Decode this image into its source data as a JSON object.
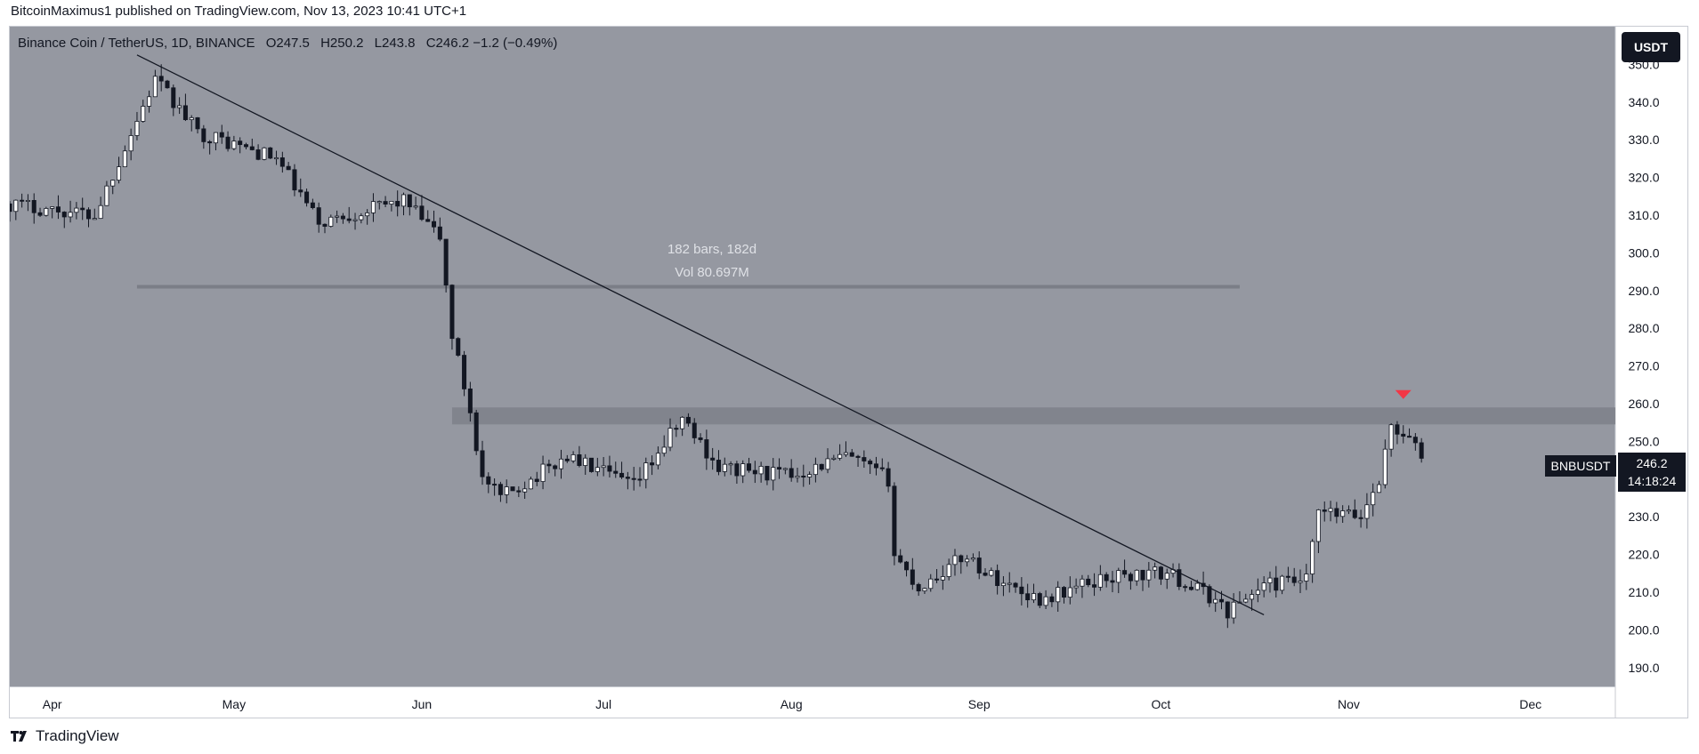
{
  "publisher_line": "BitcoinMaximus1 published on TradingView.com, Nov 13, 2023 10:41 UTC+1",
  "header": {
    "symbol": "Binance Coin / TetherUS, 1D, BINANCE",
    "o_label": "O",
    "o_value": "247.5",
    "h_label": "H",
    "h_value": "250.2",
    "l_label": "L",
    "l_value": "243.8",
    "c_label": "C",
    "c_value": "246.2 −1.2 (−0.49%)"
  },
  "currency_button": "USDT",
  "ticker_tag": "BNBUSDT",
  "last_price": "246.2",
  "countdown": "14:18:24",
  "measure": {
    "bars": "182 bars, 182d",
    "volume": "Vol 80.697M"
  },
  "footer_brand": "TradingView",
  "colors": {
    "plot_bg": "#9598a1",
    "candle_up": "#ffffff",
    "candle_down": "#131722",
    "resistance_zone": "#7e8089",
    "marker": "#f23645"
  },
  "chart_data": {
    "type": "candlestick",
    "symbol": "BNBUSDT",
    "timeframe": "1D",
    "y_axis": {
      "min": 185,
      "max": 360,
      "ticks": [
        190.0,
        200.0,
        210.0,
        220.0,
        230.0,
        240.0,
        250.0,
        260.0,
        270.0,
        280.0,
        290.0,
        300.0,
        310.0,
        320.0,
        330.0,
        340.0,
        350.0
      ]
    },
    "x_axis": {
      "start": "2023-03-25",
      "end": "2023-12-15",
      "ticks": [
        {
          "label": "Apr",
          "date": "2023-04-01"
        },
        {
          "label": "May",
          "date": "2023-05-01"
        },
        {
          "label": "Jun",
          "date": "2023-06-01"
        },
        {
          "label": "Jul",
          "date": "2023-07-01"
        },
        {
          "label": "Aug",
          "date": "2023-08-01"
        },
        {
          "label": "Sep",
          "date": "2023-09-01"
        },
        {
          "label": "Oct",
          "date": "2023-10-01"
        },
        {
          "label": "Nov",
          "date": "2023-11-01"
        },
        {
          "label": "Dec",
          "date": "2023-12-01"
        }
      ]
    },
    "grid": false,
    "trendline": {
      "from": {
        "date": "2023-04-15",
        "price": 352.5
      },
      "to": {
        "date": "2023-10-18",
        "price": 204.0
      }
    },
    "measure_line": {
      "from": "2023-04-15",
      "to": "2023-10-14",
      "price": 291.0
    },
    "resistance_zone": {
      "from": "2023-06-06",
      "to": "2023-12-15",
      "low": 254.5,
      "high": 259.0
    },
    "marker": {
      "type": "down-arrow",
      "date": "2023-11-10",
      "price": 261.0
    },
    "key_points": [
      {
        "date": "2023-03-25",
        "price": 313
      },
      {
        "date": "2023-04-08",
        "price": 310
      },
      {
        "date": "2023-04-18",
        "price": 346
      },
      {
        "date": "2023-04-25",
        "price": 332
      },
      {
        "date": "2023-05-08",
        "price": 325
      },
      {
        "date": "2023-05-15",
        "price": 308
      },
      {
        "date": "2023-05-29",
        "price": 314
      },
      {
        "date": "2023-06-04",
        "price": 304
      },
      {
        "date": "2023-06-06",
        "price": 278
      },
      {
        "date": "2023-06-09",
        "price": 258
      },
      {
        "date": "2023-06-11",
        "price": 240
      },
      {
        "date": "2023-06-14",
        "price": 235
      },
      {
        "date": "2023-06-25",
        "price": 246
      },
      {
        "date": "2023-07-06",
        "price": 238
      },
      {
        "date": "2023-07-14",
        "price": 256
      },
      {
        "date": "2023-07-20",
        "price": 243
      },
      {
        "date": "2023-08-01",
        "price": 241
      },
      {
        "date": "2023-08-10",
        "price": 246
      },
      {
        "date": "2023-08-17",
        "price": 240
      },
      {
        "date": "2023-08-18",
        "price": 220
      },
      {
        "date": "2023-08-22",
        "price": 211
      },
      {
        "date": "2023-08-30",
        "price": 220
      },
      {
        "date": "2023-09-02",
        "price": 215
      },
      {
        "date": "2023-09-11",
        "price": 208
      },
      {
        "date": "2023-09-22",
        "price": 214
      },
      {
        "date": "2023-10-02",
        "price": 215
      },
      {
        "date": "2023-10-09",
        "price": 209
      },
      {
        "date": "2023-10-12",
        "price": 205
      },
      {
        "date": "2023-10-18",
        "price": 212
      },
      {
        "date": "2023-10-25",
        "price": 213
      },
      {
        "date": "2023-10-27",
        "price": 231
      },
      {
        "date": "2023-11-03",
        "price": 230
      },
      {
        "date": "2023-11-06",
        "price": 240
      },
      {
        "date": "2023-11-08",
        "price": 254
      },
      {
        "date": "2023-11-10",
        "price": 252
      },
      {
        "date": "2023-11-13",
        "price": 246.2
      }
    ]
  }
}
